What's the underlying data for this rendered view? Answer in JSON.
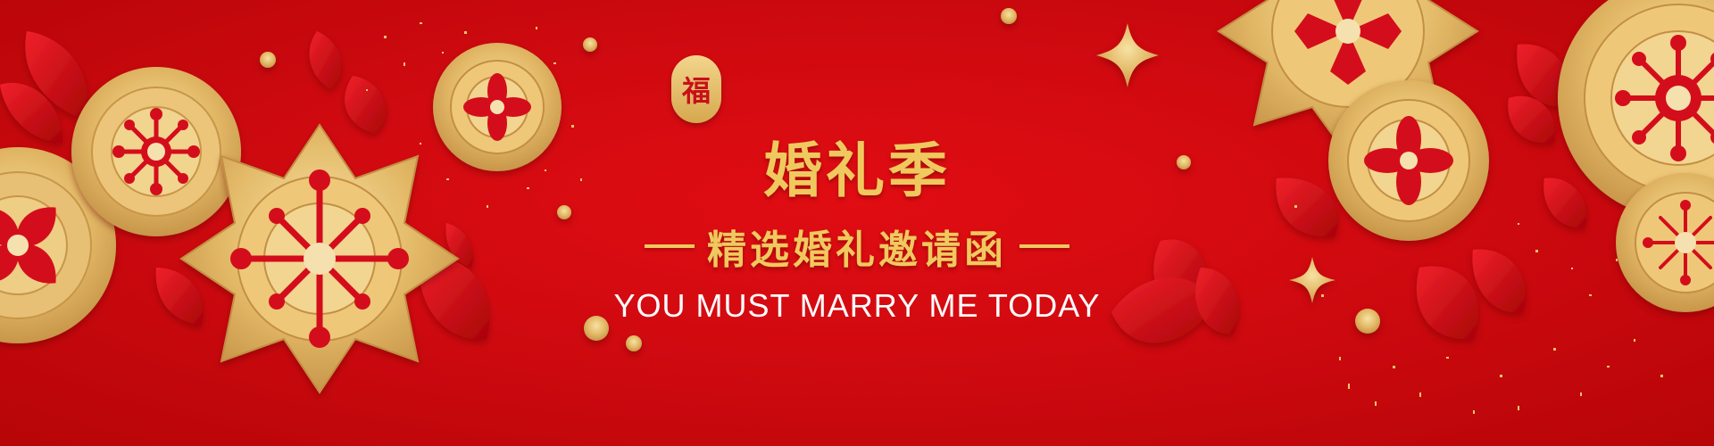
{
  "banner": {
    "badge_char": "福",
    "title": "婚礼季",
    "subtitle": "精选婚礼邀请函",
    "tagline": "YOU MUST MARRY ME TODAY"
  },
  "colors": {
    "background": "#d00a10",
    "gold": "#f0c95e",
    "white": "#ffffff"
  },
  "decorations": {
    "left": [
      "gold-paper-flower-icon",
      "red-petal-icon",
      "gold-confetti-icon"
    ],
    "right": [
      "gold-paper-flower-icon",
      "red-petal-icon",
      "gold-sparkle-icon"
    ]
  }
}
